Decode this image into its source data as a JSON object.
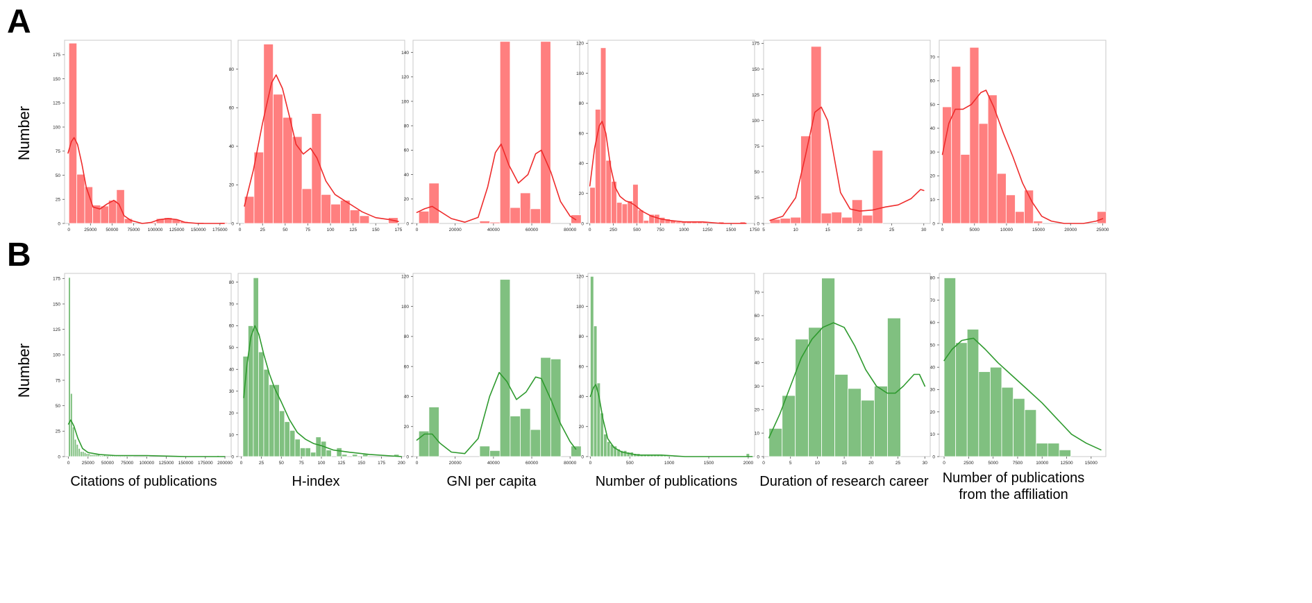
{
  "figure": {
    "panel_a_label": "A",
    "panel_b_label": "B",
    "row_ylabel": "Number",
    "column_captions": [
      "Citations of publications",
      "H-index",
      "GNI per capita",
      "Number of publications",
      "Duration of research career",
      "Number of publications\nfrom the affiliation"
    ],
    "colors": {
      "row_a_bar": "#ff7f7f",
      "row_a_line": "#ee2b2b",
      "row_b_bar": "#80c080",
      "row_b_line": "#2e9a2e",
      "frame": "#c8c8c8"
    }
  },
  "chart_data": [
    {
      "type": "bar",
      "row": "A",
      "col": 0,
      "xlim": [
        -5000,
        188000
      ],
      "ylim": [
        0,
        190
      ],
      "x_ticks": [
        0,
        25000,
        50000,
        75000,
        100000,
        125000,
        150000,
        175000
      ],
      "y_ticks": [
        0,
        25,
        50,
        75,
        100,
        125,
        150,
        175
      ],
      "bin_start": 0,
      "bin_width": 9200,
      "values": [
        187,
        51,
        38,
        19,
        18,
        24,
        35,
        5,
        0,
        0,
        1,
        5,
        6,
        4,
        2,
        1,
        1,
        0,
        0,
        1
      ],
      "kde": [
        [
          -1000,
          73
        ],
        [
          3000,
          85
        ],
        [
          6000,
          89
        ],
        [
          10000,
          82
        ],
        [
          15000,
          62
        ],
        [
          20000,
          38
        ],
        [
          28000,
          17
        ],
        [
          36000,
          15
        ],
        [
          44000,
          20
        ],
        [
          52000,
          24
        ],
        [
          58000,
          20
        ],
        [
          64000,
          8
        ],
        [
          72000,
          3
        ],
        [
          85000,
          0
        ],
        [
          95000,
          1
        ],
        [
          105000,
          4
        ],
        [
          115000,
          5
        ],
        [
          125000,
          4
        ],
        [
          135000,
          1
        ],
        [
          150000,
          0
        ],
        [
          180000,
          0
        ]
      ]
    },
    {
      "type": "bar",
      "row": "A",
      "col": 1,
      "xlim": [
        -2,
        182
      ],
      "ylim": [
        0,
        95
      ],
      "x_ticks": [
        0,
        25,
        50,
        75,
        100,
        125,
        150,
        175
      ],
      "y_ticks": [
        0,
        20,
        40,
        60,
        80
      ],
      "bin_start": 5,
      "bin_width": 10.6,
      "values": [
        14,
        37,
        93,
        67,
        55,
        45,
        18,
        57,
        15,
        10,
        12,
        7,
        4,
        0,
        0,
        3
      ],
      "kde": [
        [
          5,
          9
        ],
        [
          15,
          28
        ],
        [
          25,
          52
        ],
        [
          35,
          73
        ],
        [
          40,
          77
        ],
        [
          47,
          70
        ],
        [
          55,
          55
        ],
        [
          62,
          41
        ],
        [
          70,
          36
        ],
        [
          78,
          39
        ],
        [
          85,
          34
        ],
        [
          95,
          22
        ],
        [
          105,
          15
        ],
        [
          115,
          12
        ],
        [
          125,
          9
        ],
        [
          135,
          6
        ],
        [
          150,
          3
        ],
        [
          165,
          2
        ],
        [
          175,
          1
        ]
      ]
    },
    {
      "type": "bar",
      "row": "A",
      "col": 2,
      "xlim": [
        -2000,
        85000
      ],
      "ylim": [
        0,
        150
      ],
      "x_ticks": [
        0,
        20000,
        40000,
        60000,
        80000
      ],
      "y_ticks": [
        0,
        20,
        40,
        60,
        80,
        100,
        120,
        140
      ],
      "bin_start": 1000,
      "bin_width": 5300,
      "values": [
        10,
        33,
        0,
        0,
        0,
        0,
        2,
        1,
        149,
        13,
        25,
        12,
        149,
        0,
        0,
        7
      ],
      "kde": [
        [
          0,
          9
        ],
        [
          4000,
          12
        ],
        [
          8000,
          14
        ],
        [
          12000,
          10
        ],
        [
          18000,
          4
        ],
        [
          25000,
          1
        ],
        [
          32000,
          5
        ],
        [
          37000,
          30
        ],
        [
          41000,
          58
        ],
        [
          44000,
          65
        ],
        [
          48000,
          48
        ],
        [
          53000,
          33
        ],
        [
          58000,
          40
        ],
        [
          62000,
          57
        ],
        [
          65000,
          60
        ],
        [
          70000,
          42
        ],
        [
          75000,
          18
        ],
        [
          80000,
          6
        ],
        [
          83000,
          3
        ]
      ]
    },
    {
      "type": "bar",
      "row": "A",
      "col": 3,
      "xlim": [
        -20,
        1750
      ],
      "ylim": [
        0,
        122
      ],
      "x_ticks": [
        0,
        250,
        500,
        750,
        1000,
        1250,
        1500,
        1750
      ],
      "y_ticks": [
        0,
        20,
        40,
        60,
        80,
        100,
        120
      ],
      "bin_start": 0,
      "bin_width": 57,
      "values": [
        24,
        76,
        117,
        42,
        28,
        14,
        13,
        15,
        26,
        9,
        2,
        6,
        6,
        4,
        3,
        2,
        1,
        1,
        1,
        1,
        1,
        1,
        0,
        0,
        1,
        0,
        0,
        0,
        1
      ],
      "kde": [
        [
          0,
          25
        ],
        [
          50,
          50
        ],
        [
          100,
          65
        ],
        [
          130,
          68
        ],
        [
          170,
          60
        ],
        [
          220,
          38
        ],
        [
          270,
          24
        ],
        [
          320,
          18
        ],
        [
          380,
          15
        ],
        [
          430,
          14
        ],
        [
          480,
          12
        ],
        [
          560,
          8
        ],
        [
          650,
          5
        ],
        [
          750,
          3
        ],
        [
          850,
          2
        ],
        [
          1000,
          1
        ],
        [
          1200,
          1
        ],
        [
          1400,
          0
        ],
        [
          1660,
          0
        ]
      ]
    },
    {
      "type": "bar",
      "row": "A",
      "col": 4,
      "xlim": [
        5,
        31
      ],
      "ylim": [
        0,
        178
      ],
      "x_ticks": [
        5,
        10,
        15,
        20,
        25,
        30
      ],
      "y_ticks": [
        0,
        25,
        50,
        75,
        100,
        125,
        150,
        175
      ],
      "bin_start": 6,
      "bin_width": 1.6,
      "values": [
        4,
        5,
        6,
        85,
        172,
        10,
        11,
        6,
        23,
        8,
        71
      ],
      "kde": [
        [
          6,
          3
        ],
        [
          8,
          7
        ],
        [
          10,
          25
        ],
        [
          11.5,
          65
        ],
        [
          13,
          108
        ],
        [
          14,
          113
        ],
        [
          15,
          100
        ],
        [
          16,
          65
        ],
        [
          17,
          30
        ],
        [
          18.5,
          14
        ],
        [
          20,
          12
        ],
        [
          22,
          13
        ],
        [
          24,
          16
        ],
        [
          26,
          18
        ],
        [
          28,
          24
        ],
        [
          29.5,
          33
        ],
        [
          30,
          32
        ]
      ]
    },
    {
      "type": "bar",
      "row": "A",
      "col": 5,
      "xlim": [
        -500,
        25500
      ],
      "ylim": [
        0,
        77
      ],
      "x_ticks": [
        0,
        5000,
        10000,
        15000,
        20000,
        25000
      ],
      "y_ticks": [
        0,
        10,
        20,
        30,
        40,
        50,
        60,
        70
      ],
      "bin_start": 0,
      "bin_width": 1420,
      "values": [
        49,
        66,
        29,
        74,
        42,
        54,
        21,
        12,
        5,
        14,
        1,
        0,
        0,
        0,
        0,
        0,
        0,
        5
      ],
      "kde": [
        [
          0,
          29
        ],
        [
          1000,
          42
        ],
        [
          2000,
          48
        ],
        [
          3200,
          48
        ],
        [
          4500,
          50
        ],
        [
          6000,
          55
        ],
        [
          6800,
          56
        ],
        [
          8000,
          49
        ],
        [
          9500,
          38
        ],
        [
          11000,
          28
        ],
        [
          12500,
          17
        ],
        [
          14000,
          9
        ],
        [
          15500,
          3
        ],
        [
          17000,
          1
        ],
        [
          19000,
          0
        ],
        [
          22000,
          0
        ],
        [
          24000,
          1
        ],
        [
          25000,
          2
        ]
      ]
    },
    {
      "type": "bar",
      "row": "B",
      "col": 0,
      "xlim": [
        -5000,
        208000
      ],
      "ylim": [
        0,
        180
      ],
      "x_ticks": [
        0,
        25000,
        50000,
        75000,
        100000,
        125000,
        150000,
        175000,
        200000
      ],
      "y_ticks": [
        0,
        25,
        50,
        75,
        100,
        125,
        150,
        175
      ],
      "bin_start": 0,
      "bin_width": 2500,
      "values": [
        176,
        62,
        29,
        17,
        12,
        8,
        5,
        5,
        4,
        3,
        3,
        2,
        2,
        2,
        2,
        2,
        1,
        1,
        2,
        1,
        1,
        1,
        1,
        1,
        1,
        1,
        0,
        1,
        0,
        1,
        1,
        0,
        1,
        0,
        0,
        0,
        0,
        0,
        0,
        0,
        1,
        0,
        0,
        0,
        0,
        0,
        0,
        0,
        0,
        0,
        0,
        0,
        0,
        0,
        0,
        0,
        0,
        0,
        0,
        0,
        0,
        0,
        0,
        0,
        0,
        0,
        0,
        0,
        0,
        0,
        0,
        0,
        0,
        0,
        0,
        0,
        1
      ],
      "kde": [
        [
          0,
          32
        ],
        [
          3000,
          36
        ],
        [
          7000,
          30
        ],
        [
          12000,
          18
        ],
        [
          18000,
          8
        ],
        [
          25000,
          4
        ],
        [
          40000,
          2
        ],
        [
          60000,
          1
        ],
        [
          100000,
          1
        ],
        [
          150000,
          0
        ],
        [
          200000,
          0
        ]
      ]
    },
    {
      "type": "bar",
      "row": "B",
      "col": 1,
      "xlim": [
        -4,
        204
      ],
      "ylim": [
        0,
        84
      ],
      "x_ticks": [
        0,
        25,
        50,
        75,
        100,
        125,
        150,
        175,
        200
      ],
      "y_ticks": [
        0,
        10,
        20,
        30,
        40,
        50,
        60,
        70,
        80
      ],
      "bin_start": 2,
      "bin_width": 6.5,
      "values": [
        46,
        60,
        82,
        48,
        40,
        33,
        33,
        21,
        16,
        12,
        8,
        4,
        4,
        2,
        9,
        7,
        3,
        0,
        4,
        1,
        0,
        1,
        0,
        1,
        0,
        0,
        0,
        0,
        0,
        1
      ],
      "kde": [
        [
          3,
          27
        ],
        [
          7,
          42
        ],
        [
          12,
          55
        ],
        [
          17,
          60
        ],
        [
          22,
          56
        ],
        [
          28,
          47
        ],
        [
          35,
          38
        ],
        [
          42,
          31
        ],
        [
          50,
          25
        ],
        [
          60,
          17
        ],
        [
          70,
          11
        ],
        [
          80,
          8
        ],
        [
          90,
          6
        ],
        [
          100,
          5
        ],
        [
          115,
          3
        ],
        [
          135,
          2
        ],
        [
          160,
          1
        ],
        [
          200,
          0
        ]
      ]
    },
    {
      "type": "bar",
      "row": "B",
      "col": 2,
      "xlim": [
        -2000,
        85000
      ],
      "ylim": [
        0,
        122
      ],
      "x_ticks": [
        0,
        20000,
        40000,
        60000,
        80000
      ],
      "y_ticks": [
        0,
        20,
        40,
        60,
        80,
        100,
        120
      ],
      "bin_start": 1000,
      "bin_width": 5300,
      "values": [
        17,
        33,
        0,
        0,
        0,
        0,
        7,
        4,
        118,
        27,
        32,
        18,
        66,
        65,
        0,
        7
      ],
      "kde": [
        [
          0,
          11
        ],
        [
          4000,
          15
        ],
        [
          8000,
          15
        ],
        [
          12000,
          9
        ],
        [
          18000,
          3
        ],
        [
          25000,
          2
        ],
        [
          32000,
          12
        ],
        [
          38000,
          40
        ],
        [
          43000,
          56
        ],
        [
          47000,
          50
        ],
        [
          52000,
          38
        ],
        [
          57000,
          43
        ],
        [
          62000,
          53
        ],
        [
          65000,
          52
        ],
        [
          70000,
          38
        ],
        [
          75000,
          22
        ],
        [
          80000,
          10
        ],
        [
          83000,
          5
        ]
      ]
    },
    {
      "type": "bar",
      "row": "B",
      "col": 3,
      "xlim": [
        -30,
        2080
      ],
      "ylim": [
        0,
        122
      ],
      "x_ticks": [
        0,
        500,
        1000,
        1500,
        2000
      ],
      "y_ticks": [
        0,
        20,
        40,
        60,
        80,
        100,
        120
      ],
      "bin_start": 0,
      "bin_width": 42,
      "values": [
        120,
        87,
        49,
        29,
        15,
        10,
        8,
        7,
        5,
        4,
        4,
        3,
        3,
        2,
        2,
        1,
        1,
        1,
        1,
        1,
        1,
        1,
        1,
        1,
        1,
        0,
        0,
        0,
        0,
        0,
        0,
        0,
        0,
        0,
        0,
        0,
        0,
        0,
        0,
        0,
        0,
        0,
        0,
        0,
        0,
        0,
        0,
        2
      ],
      "kde": [
        [
          0,
          40
        ],
        [
          40,
          46
        ],
        [
          70,
          48
        ],
        [
          110,
          40
        ],
        [
          160,
          25
        ],
        [
          220,
          12
        ],
        [
          300,
          6
        ],
        [
          400,
          3
        ],
        [
          600,
          1
        ],
        [
          900,
          1
        ],
        [
          1200,
          0
        ],
        [
          1600,
          0
        ],
        [
          2050,
          0
        ]
      ]
    },
    {
      "type": "bar",
      "row": "B",
      "col": 4,
      "xlim": [
        0,
        31
      ],
      "ylim": [
        0,
        78
      ],
      "x_ticks": [
        0,
        5,
        10,
        15,
        20,
        25,
        30
      ],
      "y_ticks": [
        0,
        10,
        20,
        30,
        40,
        50,
        60,
        70
      ],
      "bin_start": 1,
      "bin_width": 2.45,
      "values": [
        12,
        26,
        50,
        55,
        76,
        35,
        29,
        24,
        30,
        59
      ],
      "kde": [
        [
          1,
          8
        ],
        [
          3,
          18
        ],
        [
          5,
          30
        ],
        [
          7,
          42
        ],
        [
          9,
          50
        ],
        [
          11,
          55
        ],
        [
          13,
          57
        ],
        [
          15,
          55
        ],
        [
          17,
          47
        ],
        [
          19,
          37
        ],
        [
          21,
          30
        ],
        [
          23,
          27
        ],
        [
          24.5,
          27
        ],
        [
          26,
          30
        ],
        [
          28,
          35
        ],
        [
          29,
          35
        ],
        [
          30,
          30
        ]
      ]
    },
    {
      "type": "bar",
      "row": "B",
      "col": 5,
      "xlim": [
        -500,
        16500
      ],
      "ylim": [
        0,
        82
      ],
      "x_ticks": [
        0,
        2500,
        5000,
        7500,
        10000,
        12500,
        15000
      ],
      "y_ticks": [
        0,
        10,
        20,
        30,
        40,
        50,
        60,
        70,
        80
      ],
      "bin_start": 0,
      "bin_width": 1175,
      "values": [
        80,
        51,
        57,
        38,
        40,
        31,
        26,
        21,
        6,
        6,
        3
      ],
      "kde": [
        [
          0,
          43
        ],
        [
          800,
          48
        ],
        [
          1800,
          52
        ],
        [
          3000,
          53
        ],
        [
          4200,
          48
        ],
        [
          5500,
          42
        ],
        [
          7000,
          36
        ],
        [
          8500,
          30
        ],
        [
          10000,
          24
        ],
        [
          11500,
          17
        ],
        [
          13000,
          10
        ],
        [
          14500,
          6
        ],
        [
          16000,
          3
        ]
      ]
    }
  ]
}
